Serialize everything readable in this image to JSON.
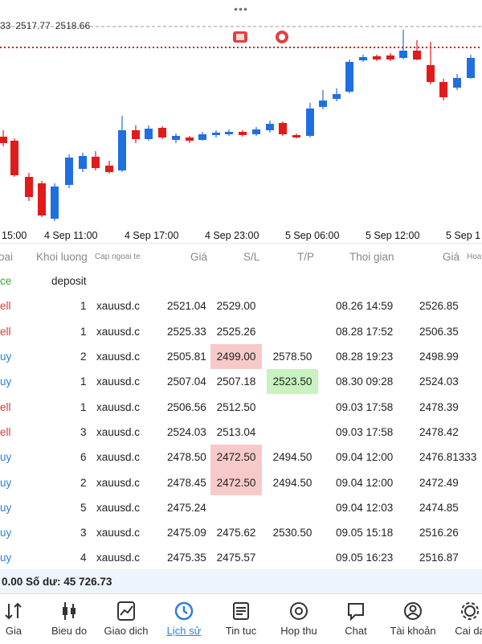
{
  "top_dots": "•••",
  "chart": {
    "price_labels": [
      "33",
      "2517.77",
      "2518.66"
    ],
    "time_labels": [
      "15:00",
      "4 Sep 11:00",
      "4 Sep 17:00",
      "4 Sep 23:00",
      "5 Sep 06:00",
      "5 Sep 12:00",
      "5 Sep 1"
    ]
  },
  "table": {
    "headers": {
      "type": "oai",
      "volume": "Khoi luong",
      "symbol": "Cap ngoai te",
      "price": "Giá",
      "sl": "S/L",
      "tp": "T/P",
      "time": "Thoi gian",
      "close_price": "Giá",
      "commission": "Hoa"
    },
    "rows": [
      {
        "type": "ce",
        "kind": "balance",
        "volume": "",
        "symbol": "deposit",
        "price": "",
        "sl": "",
        "tp": "",
        "time": "",
        "close_price": ""
      },
      {
        "type": "ell",
        "kind": "sell",
        "volume": "1",
        "symbol": "xauusd.c",
        "price": "2521.04",
        "sl": "2529.00",
        "tp": "",
        "time": "08.26 14:59",
        "close_price": "2526.85"
      },
      {
        "type": "ell",
        "kind": "sell",
        "volume": "1",
        "symbol": "xauusd.c",
        "price": "2525.33",
        "sl": "2525.26",
        "tp": "",
        "time": "08.28 17:52",
        "close_price": "2506.35"
      },
      {
        "type": "uy",
        "kind": "buy",
        "volume": "2",
        "symbol": "xauusd.c",
        "price": "2505.81",
        "sl": "2499.00",
        "sl_hl": "red",
        "tp": "2578.50",
        "time": "08.28 19:23",
        "close_price": "2498.99"
      },
      {
        "type": "uy",
        "kind": "buy",
        "volume": "1",
        "symbol": "xauusd.c",
        "price": "2507.04",
        "sl": "2507.18",
        "tp": "2523.50",
        "tp_hl": "green",
        "time": "08.30 09:28",
        "close_price": "2524.03"
      },
      {
        "type": "ell",
        "kind": "sell",
        "volume": "1",
        "symbol": "xauusd.c",
        "price": "2506.56",
        "sl": "2512.50",
        "tp": "",
        "time": "09.03 17:58",
        "close_price": "2478.39"
      },
      {
        "type": "ell",
        "kind": "sell",
        "volume": "3",
        "symbol": "xauusd.c",
        "price": "2524.03",
        "sl": "2513.04",
        "tp": "",
        "time": "09.03 17:58",
        "close_price": "2478.42"
      },
      {
        "type": "uy",
        "kind": "buy",
        "volume": "6",
        "symbol": "xauusd.c",
        "price": "2478.50",
        "sl": "2472.50",
        "sl_hl": "red",
        "tp": "2494.50",
        "time": "09.04 12:00",
        "close_price": "2476.81333"
      },
      {
        "type": "uy",
        "kind": "buy",
        "volume": "2",
        "symbol": "xauusd.c",
        "price": "2478.45",
        "sl": "2472.50",
        "sl_hl": "red",
        "tp": "2494.50",
        "time": "09.04 12:00",
        "close_price": "2472.49"
      },
      {
        "type": "uy",
        "kind": "buy",
        "volume": "5",
        "symbol": "xauusd.c",
        "price": "2475.24",
        "sl": "",
        "tp": "",
        "time": "09.04 12:03",
        "close_price": "2474.85"
      },
      {
        "type": "uy",
        "kind": "buy",
        "volume": "3",
        "symbol": "xauusd.c",
        "price": "2475.09",
        "sl": "2475.62",
        "tp": "2530.50",
        "time": "09.05 15:18",
        "close_price": "2516.26"
      },
      {
        "type": "uy",
        "kind": "buy",
        "volume": "4",
        "symbol": "xauusd.c",
        "price": "2475.35",
        "sl": "2475.57",
        "tp": "",
        "time": "09.05 16:23",
        "close_price": "2516.87"
      }
    ]
  },
  "balance_bar": "0.00 Số dư: 45 726.73",
  "tabs": [
    {
      "label": "Gia",
      "icon": "quotes-arrows-icon"
    },
    {
      "label": "Bieu do",
      "icon": "candlestick-icon"
    },
    {
      "label": "Giao dich",
      "icon": "trade-chart-icon"
    },
    {
      "label": "Lịch sử",
      "icon": "history-clock-icon",
      "active": true
    },
    {
      "label": "Tin tuc",
      "icon": "news-icon"
    },
    {
      "label": "Hop thu",
      "icon": "mail-at-icon"
    },
    {
      "label": "Chat",
      "icon": "chat-bubble-icon"
    },
    {
      "label": "Tài khoản",
      "icon": "account-person-icon"
    },
    {
      "label": "Cai da",
      "icon": "settings-gear-icon"
    }
  ],
  "colors": {
    "bull": "#1f6fe0",
    "bear": "#e01b1b",
    "accent": "#2f7fd9",
    "sell_text": "#d63a3a",
    "buy_text": "#2f7fd9",
    "balance_text": "#3aa63a"
  }
}
